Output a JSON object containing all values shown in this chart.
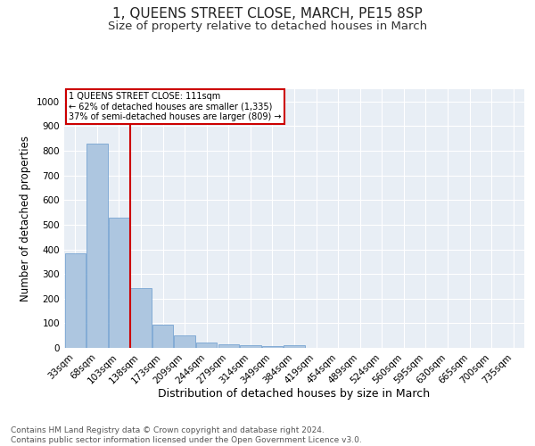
{
  "title": "1, QUEENS STREET CLOSE, MARCH, PE15 8SP",
  "subtitle": "Size of property relative to detached houses in March",
  "xlabel": "Distribution of detached houses by size in March",
  "ylabel": "Number of detached properties",
  "footnote1": "Contains HM Land Registry data © Crown copyright and database right 2024.",
  "footnote2": "Contains public sector information licensed under the Open Government Licence v3.0.",
  "categories": [
    "33sqm",
    "68sqm",
    "103sqm",
    "138sqm",
    "173sqm",
    "209sqm",
    "244sqm",
    "279sqm",
    "314sqm",
    "349sqm",
    "384sqm",
    "419sqm",
    "454sqm",
    "489sqm",
    "524sqm",
    "560sqm",
    "595sqm",
    "630sqm",
    "665sqm",
    "700sqm",
    "735sqm"
  ],
  "values": [
    385,
    830,
    530,
    242,
    95,
    50,
    22,
    15,
    10,
    8,
    10,
    0,
    0,
    0,
    0,
    0,
    0,
    0,
    0,
    0,
    0
  ],
  "bar_color": "#adc6e0",
  "bar_edge_color": "#6699cc",
  "redline_x": 2.5,
  "redline_label": "1 QUEENS STREET CLOSE: 111sqm",
  "annotation_line1": "← 62% of detached houses are smaller (1,335)",
  "annotation_line2": "37% of semi-detached houses are larger (809) →",
  "annotation_box_color": "#cc0000",
  "ylim": [
    0,
    1050
  ],
  "yticks": [
    0,
    100,
    200,
    300,
    400,
    500,
    600,
    700,
    800,
    900,
    1000
  ],
  "background_color": "#e8eef5",
  "grid_color": "#ffffff",
  "fig_background": "#ffffff",
  "title_fontsize": 11,
  "subtitle_fontsize": 9.5,
  "axis_label_fontsize": 8.5,
  "tick_fontsize": 7.5,
  "footnote_fontsize": 6.5
}
